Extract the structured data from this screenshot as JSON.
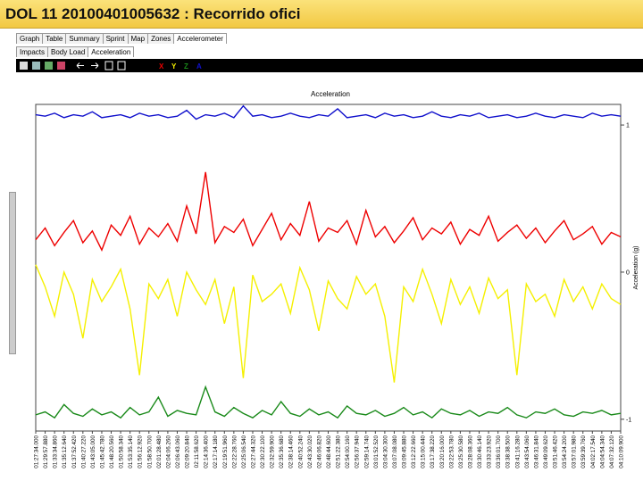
{
  "window_title": "DOL 11 20100401005632 : Recorrido ofici",
  "tabs": [
    "Graph",
    "Table",
    "Summary",
    "Sprint",
    "Map",
    "Zones",
    "Accelerometer"
  ],
  "subtabs": [
    "Impacts",
    "Body Load",
    "Acceleration"
  ],
  "chart_data": {
    "type": "line",
    "title": "Acceleration",
    "y_label": "Acceleration (g)",
    "categories": [
      "01:27:34.000",
      "01:29:57.880",
      "01:33:34.860",
      "01:35:12.640",
      "01:37:52.420",
      "01:40:27.220",
      "01:43:05.000",
      "01:45:42.780",
      "01:48:20.560",
      "01:50:58.340",
      "01:53:35.140",
      "01:56:12.920",
      "01:58:50.700",
      "02:01:28.480",
      "02:04:06.260",
      "02:06:43.060",
      "02:09:20.840",
      "02:11:58.620",
      "02:14:36.400",
      "02:17:14.180",
      "02:19:51.960",
      "02:22:28.760",
      "02:25:06.540",
      "02:27:44.320",
      "02:30:22.100",
      "02:32:59.900",
      "02:35:36.680",
      "02:38:14.460",
      "02:40:52.240",
      "02:43:30.020",
      "02:46:06.820",
      "02:48:44.600",
      "02:51:22.380",
      "02:54:00.160",
      "02:56:37.940",
      "02:59:14.740",
      "03:01:52.520",
      "03:04:30.300",
      "03:07:08.080",
      "03:09:45.880",
      "03:12:22.660",
      "03:15:00.440",
      "03:17:38.220",
      "03:20:16.000",
      "03:22:53.780",
      "03:25:30.580",
      "03:28:08.360",
      "03:30:46.140",
      "03:33:23.920",
      "03:36:01.700",
      "03:38:38.500",
      "03:41:16.280",
      "03:43:54.060",
      "03:46:31.840",
      "03:49:09.620",
      "03:51:46.420",
      "03:54:24.200",
      "03:57:01.980",
      "03:59:39.760",
      "04:02:17.540",
      "04:04:54.340",
      "04:07:32.120",
      "04:10:09.900"
    ],
    "series": [
      {
        "name": "X",
        "color": "#ee0000",
        "values": [
          0.22,
          0.3,
          0.18,
          0.27,
          0.35,
          0.2,
          0.28,
          0.15,
          0.32,
          0.25,
          0.38,
          0.19,
          0.3,
          0.24,
          0.33,
          0.21,
          0.45,
          0.26,
          0.68,
          0.2,
          0.31,
          0.27,
          0.36,
          0.18,
          0.29,
          0.4,
          0.22,
          0.33,
          0.25,
          0.48,
          0.21,
          0.3,
          0.27,
          0.35,
          0.19,
          0.42,
          0.24,
          0.31,
          0.2,
          0.28,
          0.37,
          0.22,
          0.3,
          0.26,
          0.34,
          0.19,
          0.29,
          0.25,
          0.38,
          0.21,
          0.27,
          0.32,
          0.23,
          0.3,
          0.2,
          0.28,
          0.35,
          0.22,
          0.26,
          0.31,
          0.19,
          0.27,
          0.24
        ]
      },
      {
        "name": "Y",
        "color": "#f5f000",
        "values": [
          0.05,
          -0.1,
          -0.3,
          0.0,
          -0.15,
          -0.45,
          -0.05,
          -0.2,
          -0.1,
          0.02,
          -0.25,
          -0.7,
          -0.08,
          -0.18,
          -0.05,
          -0.3,
          0.0,
          -0.12,
          -0.22,
          -0.05,
          -0.35,
          -0.1,
          -0.72,
          -0.02,
          -0.2,
          -0.15,
          -0.08,
          -0.28,
          0.03,
          -0.12,
          -0.4,
          -0.06,
          -0.18,
          -0.25,
          -0.03,
          -0.15,
          -0.08,
          -0.3,
          -0.75,
          -0.1,
          -0.2,
          0.02,
          -0.15,
          -0.35,
          -0.05,
          -0.22,
          -0.1,
          -0.28,
          -0.04,
          -0.18,
          -0.12,
          -0.7,
          -0.08,
          -0.2,
          -0.15,
          -0.3,
          -0.05,
          -0.2,
          -0.1,
          -0.25,
          -0.08,
          -0.18,
          -0.22
        ]
      },
      {
        "name": "Z",
        "color": "#1a8a1a",
        "values": [
          -0.97,
          -0.95,
          -0.99,
          -0.9,
          -0.96,
          -0.98,
          -0.93,
          -0.97,
          -0.95,
          -0.99,
          -0.92,
          -0.97,
          -0.95,
          -0.85,
          -0.98,
          -0.94,
          -0.96,
          -0.97,
          -0.78,
          -0.95,
          -0.98,
          -0.92,
          -0.96,
          -0.99,
          -0.94,
          -0.97,
          -0.88,
          -0.96,
          -0.98,
          -0.93,
          -0.97,
          -0.95,
          -0.99,
          -0.91,
          -0.96,
          -0.97,
          -0.94,
          -0.98,
          -0.96,
          -0.92,
          -0.97,
          -0.95,
          -0.99,
          -0.93,
          -0.96,
          -0.97,
          -0.94,
          -0.98,
          -0.95,
          -0.96,
          -0.92,
          -0.97,
          -0.99,
          -0.95,
          -0.96,
          -0.93,
          -0.97,
          -0.98,
          -0.95,
          -0.96,
          -0.94,
          -0.97,
          -0.96
        ]
      },
      {
        "name": "A",
        "color": "#1010cc",
        "values": [
          1.07,
          1.06,
          1.08,
          1.05,
          1.07,
          1.06,
          1.09,
          1.05,
          1.06,
          1.07,
          1.05,
          1.08,
          1.06,
          1.07,
          1.05,
          1.06,
          1.1,
          1.04,
          1.07,
          1.06,
          1.08,
          1.05,
          1.13,
          1.06,
          1.07,
          1.05,
          1.06,
          1.08,
          1.06,
          1.05,
          1.07,
          1.06,
          1.11,
          1.05,
          1.06,
          1.07,
          1.05,
          1.08,
          1.06,
          1.07,
          1.05,
          1.06,
          1.09,
          1.06,
          1.05,
          1.07,
          1.06,
          1.08,
          1.05,
          1.06,
          1.07,
          1.05,
          1.06,
          1.08,
          1.06,
          1.05,
          1.07,
          1.06,
          1.05,
          1.08,
          1.06,
          1.07,
          1.06
        ]
      }
    ],
    "ylim": [
      -1.08,
      1.14
    ],
    "yticks": [
      -1,
      0,
      1
    ]
  }
}
